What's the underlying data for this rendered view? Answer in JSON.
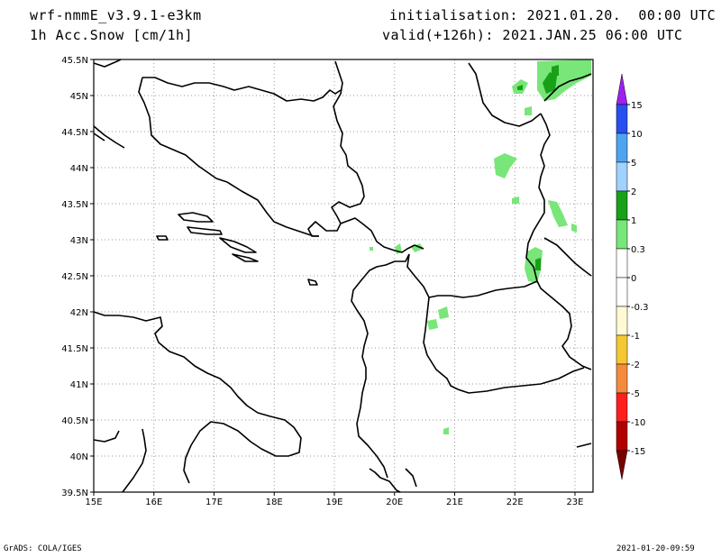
{
  "header": {
    "model": "wrf-nmmE_v3.9.1-e3km",
    "field": "1h Acc.Snow [cm/1h]",
    "init": "initialisation: 2021.01.20.  00:00 UTC",
    "valid": "valid(+126h): 2021.JAN.25 06:00 UTC"
  },
  "footer": {
    "left": "GrADS: COLA/IGES",
    "right": "2021-01-20-09:59"
  },
  "map": {
    "lon_range": [
      15,
      23.3
    ],
    "lat_range": [
      39.5,
      45.5
    ],
    "x_ticks": [
      "15E",
      "16E",
      "17E",
      "18E",
      "19E",
      "20E",
      "21E",
      "22E",
      "23E"
    ],
    "y_ticks": [
      "39.5N",
      "40N",
      "40.5N",
      "41N",
      "41.5N",
      "42N",
      "42.5N",
      "43N",
      "43.5N",
      "44N",
      "44.5N",
      "45N",
      "45.5N"
    ],
    "grid": true
  },
  "colorbar": {
    "labels": [
      "15",
      "10",
      "5",
      "2",
      "1",
      "0.3",
      "0",
      "-0.3",
      "-1",
      "-2",
      "-5",
      "-10",
      "-15"
    ],
    "colors": [
      "#a020f0",
      "#2850f0",
      "#4ea4f0",
      "#a0d2ff",
      "#18a018",
      "#78e678",
      "#ffffff",
      "#ffffff",
      "#fffad2",
      "#f5c832",
      "#f58c3c",
      "#ff1e1e",
      "#b00000",
      "#780000"
    ]
  }
}
